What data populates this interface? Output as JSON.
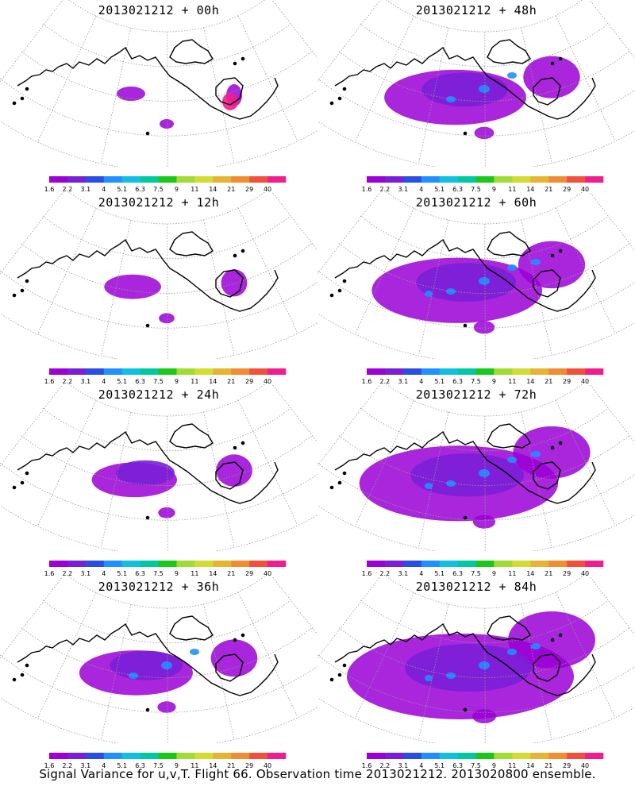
{
  "panels": [
    {
      "title": "2013021212 + 00h",
      "lead_hours": 0
    },
    {
      "title": "2013021212 + 48h",
      "lead_hours": 48
    },
    {
      "title": "2013021212 + 12h",
      "lead_hours": 12
    },
    {
      "title": "2013021212 + 60h",
      "lead_hours": 60
    },
    {
      "title": "2013021212 + 24h",
      "lead_hours": 24
    },
    {
      "title": "2013021212 + 72h",
      "lead_hours": 72
    },
    {
      "title": "2013021212 + 36h",
      "lead_hours": 36
    },
    {
      "title": "2013021212 + 84h",
      "lead_hours": 84
    }
  ],
  "colorbar": {
    "levels": [
      "1.6",
      "2.2",
      "3.1",
      "4",
      "5.1",
      "6.3",
      "7.5",
      "9",
      "11",
      "14",
      "21",
      "29",
      "40"
    ],
    "colors": [
      "#9b00d6",
      "#7a1fd6",
      "#2a4ee0",
      "#1e90ff",
      "#10c0e0",
      "#00c8a0",
      "#19c819",
      "#a0dc32",
      "#d2dc32",
      "#e6b432",
      "#f08c32",
      "#f0503c",
      "#f01e8c"
    ]
  },
  "map": {
    "coastline_color": "#000000",
    "grid_color": "#9a9a9a",
    "field_colors": {
      "low": "#9b00d6",
      "mid": "#7a1fd6",
      "high": "#1e90ff",
      "peak": "#f01e8c"
    }
  },
  "caption": "Signal Variance for u,v,T. Flight 66. Observation time 2013021212. 2013020800 ensemble."
}
